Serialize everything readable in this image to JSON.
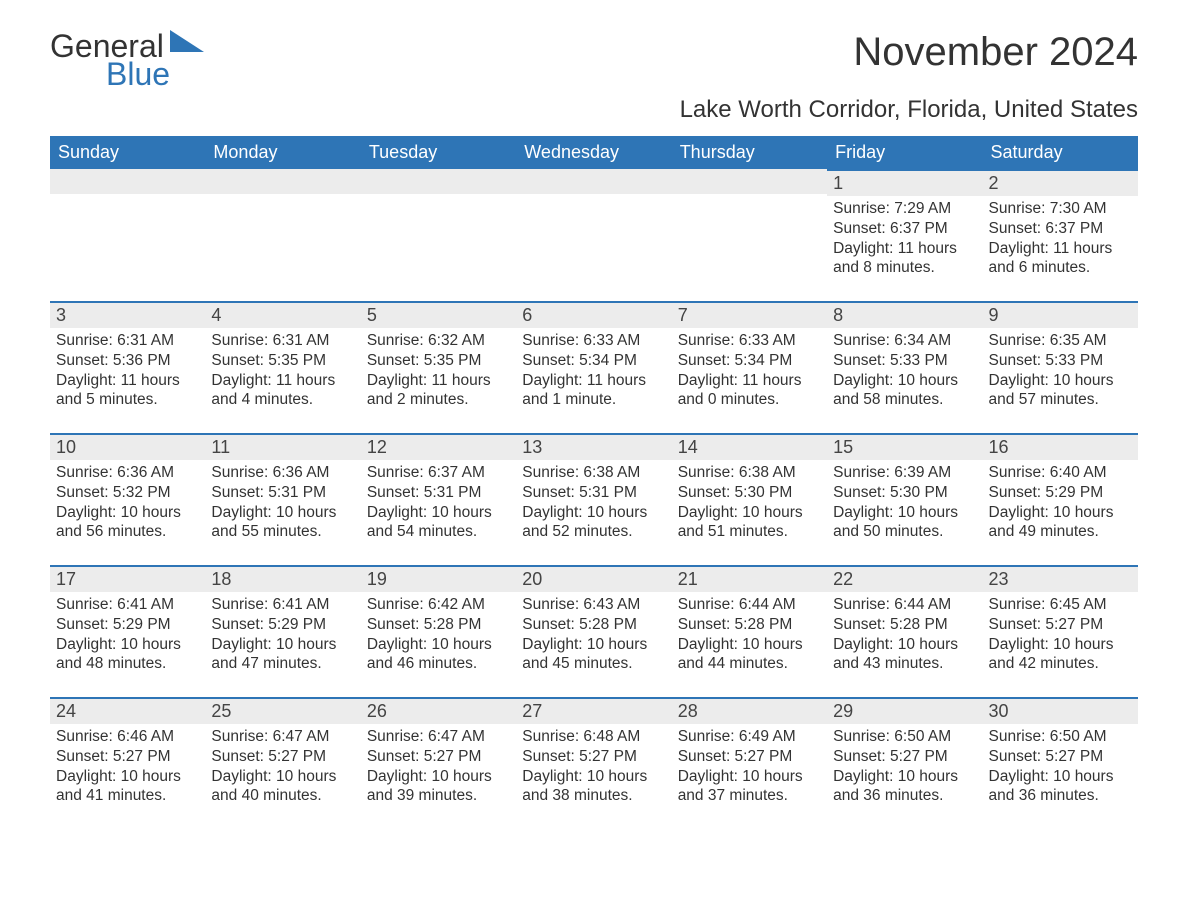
{
  "logo": {
    "word1": "General",
    "word2": "Blue"
  },
  "title": "November 2024",
  "location": "Lake Worth Corridor, Florida, United States",
  "colors": {
    "brand_blue": "#2e75b6",
    "header_bg": "#2e75b6",
    "header_text": "#ffffff",
    "daynum_bg": "#ececec",
    "border_top": "#2e75b6",
    "body_text": "#333333",
    "background": "#ffffff"
  },
  "layout": {
    "font_family": "Arial",
    "title_fontsize": 40,
    "location_fontsize": 24,
    "dayheader_fontsize": 18,
    "daynum_fontsize": 18,
    "body_fontsize": 15.5,
    "columns": 7,
    "rows": 5
  },
  "day_headers": [
    "Sunday",
    "Monday",
    "Tuesday",
    "Wednesday",
    "Thursday",
    "Friday",
    "Saturday"
  ],
  "weeks": [
    [
      null,
      null,
      null,
      null,
      null,
      {
        "n": "1",
        "sunrise": "7:29 AM",
        "sunset": "6:37 PM",
        "daylight": "11 hours and 8 minutes."
      },
      {
        "n": "2",
        "sunrise": "7:30 AM",
        "sunset": "6:37 PM",
        "daylight": "11 hours and 6 minutes."
      }
    ],
    [
      {
        "n": "3",
        "sunrise": "6:31 AM",
        "sunset": "5:36 PM",
        "daylight": "11 hours and 5 minutes."
      },
      {
        "n": "4",
        "sunrise": "6:31 AM",
        "sunset": "5:35 PM",
        "daylight": "11 hours and 4 minutes."
      },
      {
        "n": "5",
        "sunrise": "6:32 AM",
        "sunset": "5:35 PM",
        "daylight": "11 hours and 2 minutes."
      },
      {
        "n": "6",
        "sunrise": "6:33 AM",
        "sunset": "5:34 PM",
        "daylight": "11 hours and 1 minute."
      },
      {
        "n": "7",
        "sunrise": "6:33 AM",
        "sunset": "5:34 PM",
        "daylight": "11 hours and 0 minutes."
      },
      {
        "n": "8",
        "sunrise": "6:34 AM",
        "sunset": "5:33 PM",
        "daylight": "10 hours and 58 minutes."
      },
      {
        "n": "9",
        "sunrise": "6:35 AM",
        "sunset": "5:33 PM",
        "daylight": "10 hours and 57 minutes."
      }
    ],
    [
      {
        "n": "10",
        "sunrise": "6:36 AM",
        "sunset": "5:32 PM",
        "daylight": "10 hours and 56 minutes."
      },
      {
        "n": "11",
        "sunrise": "6:36 AM",
        "sunset": "5:31 PM",
        "daylight": "10 hours and 55 minutes."
      },
      {
        "n": "12",
        "sunrise": "6:37 AM",
        "sunset": "5:31 PM",
        "daylight": "10 hours and 54 minutes."
      },
      {
        "n": "13",
        "sunrise": "6:38 AM",
        "sunset": "5:31 PM",
        "daylight": "10 hours and 52 minutes."
      },
      {
        "n": "14",
        "sunrise": "6:38 AM",
        "sunset": "5:30 PM",
        "daylight": "10 hours and 51 minutes."
      },
      {
        "n": "15",
        "sunrise": "6:39 AM",
        "sunset": "5:30 PM",
        "daylight": "10 hours and 50 minutes."
      },
      {
        "n": "16",
        "sunrise": "6:40 AM",
        "sunset": "5:29 PM",
        "daylight": "10 hours and 49 minutes."
      }
    ],
    [
      {
        "n": "17",
        "sunrise": "6:41 AM",
        "sunset": "5:29 PM",
        "daylight": "10 hours and 48 minutes."
      },
      {
        "n": "18",
        "sunrise": "6:41 AM",
        "sunset": "5:29 PM",
        "daylight": "10 hours and 47 minutes."
      },
      {
        "n": "19",
        "sunrise": "6:42 AM",
        "sunset": "5:28 PM",
        "daylight": "10 hours and 46 minutes."
      },
      {
        "n": "20",
        "sunrise": "6:43 AM",
        "sunset": "5:28 PM",
        "daylight": "10 hours and 45 minutes."
      },
      {
        "n": "21",
        "sunrise": "6:44 AM",
        "sunset": "5:28 PM",
        "daylight": "10 hours and 44 minutes."
      },
      {
        "n": "22",
        "sunrise": "6:44 AM",
        "sunset": "5:28 PM",
        "daylight": "10 hours and 43 minutes."
      },
      {
        "n": "23",
        "sunrise": "6:45 AM",
        "sunset": "5:27 PM",
        "daylight": "10 hours and 42 minutes."
      }
    ],
    [
      {
        "n": "24",
        "sunrise": "6:46 AM",
        "sunset": "5:27 PM",
        "daylight": "10 hours and 41 minutes."
      },
      {
        "n": "25",
        "sunrise": "6:47 AM",
        "sunset": "5:27 PM",
        "daylight": "10 hours and 40 minutes."
      },
      {
        "n": "26",
        "sunrise": "6:47 AM",
        "sunset": "5:27 PM",
        "daylight": "10 hours and 39 minutes."
      },
      {
        "n": "27",
        "sunrise": "6:48 AM",
        "sunset": "5:27 PM",
        "daylight": "10 hours and 38 minutes."
      },
      {
        "n": "28",
        "sunrise": "6:49 AM",
        "sunset": "5:27 PM",
        "daylight": "10 hours and 37 minutes."
      },
      {
        "n": "29",
        "sunrise": "6:50 AM",
        "sunset": "5:27 PM",
        "daylight": "10 hours and 36 minutes."
      },
      {
        "n": "30",
        "sunrise": "6:50 AM",
        "sunset": "5:27 PM",
        "daylight": "10 hours and 36 minutes."
      }
    ]
  ],
  "labels": {
    "sunrise": "Sunrise: ",
    "sunset": "Sunset: ",
    "daylight": "Daylight: "
  }
}
